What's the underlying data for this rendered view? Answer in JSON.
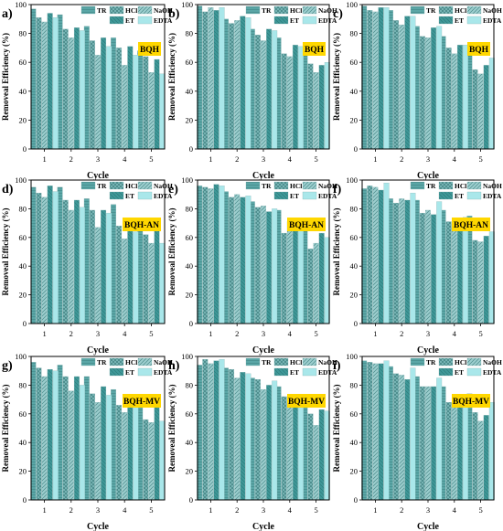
{
  "legend": {
    "labels": [
      "TR",
      "HCl",
      "NaOH",
      "ET",
      "EDTA"
    ]
  },
  "colors": {
    "TR": "#5aa6a6",
    "HCl": "#7cbaba",
    "NaOH": "#9ccece",
    "ET": "#3e9797",
    "EDTA": "#a9e7ea",
    "badge_fill": "#ffd700"
  },
  "chart_data": [
    {
      "panel": "a)",
      "type": "bar",
      "badge": "BQH",
      "categories": [
        "1",
        "2",
        "3",
        "4",
        "5"
      ],
      "xlabel": "Cycle",
      "ylabel": "Removeal Efficiency (%)",
      "ylim": [
        0,
        100
      ],
      "yticks": [
        0,
        20,
        40,
        60,
        80,
        100
      ],
      "series": [
        {
          "name": "TR",
          "values": [
            97,
            93,
            85,
            77,
            68
          ]
        },
        {
          "name": "HCl",
          "values": [
            91,
            83,
            75,
            70,
            64
          ]
        },
        {
          "name": "NaOH",
          "values": [
            88,
            77,
            65,
            58,
            53
          ]
        },
        {
          "name": "ET",
          "values": [
            94,
            84,
            77,
            71,
            62
          ]
        },
        {
          "name": "EDTA",
          "values": [
            91,
            82,
            71,
            65,
            52
          ]
        }
      ]
    },
    {
      "panel": "b)",
      "type": "bar",
      "badge": "BQH",
      "categories": [
        "1",
        "2",
        "3",
        "4",
        "5"
      ],
      "xlabel": "Cycle",
      "ylabel": "Removeal Efficiency (%)",
      "ylim": [
        0,
        100
      ],
      "yticks": [
        0,
        20,
        40,
        60,
        80,
        100
      ],
      "series": [
        {
          "name": "TR",
          "values": [
            99,
            90,
            83,
            77,
            65
          ]
        },
        {
          "name": "HCl",
          "values": [
            95,
            87,
            79,
            66,
            59
          ]
        },
        {
          "name": "NaOH",
          "values": [
            98,
            89,
            75,
            64,
            53
          ]
        },
        {
          "name": "ET",
          "values": [
            96,
            92,
            83,
            72,
            58
          ]
        },
        {
          "name": "EDTA",
          "values": [
            98,
            91,
            82,
            71,
            60
          ]
        }
      ]
    },
    {
      "panel": "c)",
      "type": "bar",
      "badge": "BQH",
      "categories": [
        "1",
        "2",
        "3",
        "4",
        "5"
      ],
      "xlabel": "Cycle",
      "ylabel": "Removeal Efficiency (%)",
      "ylim": [
        0,
        100
      ],
      "yticks": [
        0,
        20,
        40,
        60,
        80,
        100
      ],
      "series": [
        {
          "name": "TR",
          "values": [
            99,
            96,
            85,
            78,
            68
          ]
        },
        {
          "name": "HCl",
          "values": [
            96,
            89,
            78,
            70,
            55
          ]
        },
        {
          "name": "NaOH",
          "values": [
            95,
            86,
            77,
            66,
            52
          ]
        },
        {
          "name": "ET",
          "values": [
            98,
            92,
            84,
            72,
            58
          ]
        },
        {
          "name": "EDTA",
          "values": [
            98,
            92,
            85,
            72,
            63
          ]
        }
      ]
    },
    {
      "panel": "d)",
      "type": "bar",
      "badge": "BQH-AN",
      "categories": [
        "1",
        "2",
        "3",
        "4",
        "5"
      ],
      "xlabel": "Cycle",
      "ylabel": "Removeal Efficiency (%)",
      "ylim": [
        0,
        100
      ],
      "yticks": [
        0,
        20,
        40,
        60,
        80,
        100
      ],
      "series": [
        {
          "name": "TR",
          "values": [
            95,
            95,
            87,
            83,
            73
          ]
        },
        {
          "name": "HCl",
          "values": [
            91,
            86,
            79,
            68,
            62
          ]
        },
        {
          "name": "NaOH",
          "values": [
            88,
            79,
            67,
            59,
            56
          ]
        },
        {
          "name": "ET",
          "values": [
            96,
            86,
            79,
            67,
            65
          ]
        },
        {
          "name": "EDTA",
          "values": [
            92,
            81,
            77,
            64,
            56
          ]
        }
      ]
    },
    {
      "panel": "e)",
      "type": "bar",
      "badge": "BQH-AN",
      "categories": [
        "1",
        "2",
        "3",
        "4",
        "5"
      ],
      "xlabel": "Cycle",
      "ylabel": "Removeal Efficiency (%)",
      "ylim": [
        0,
        100
      ],
      "yticks": [
        0,
        20,
        40,
        60,
        80,
        100
      ],
      "series": [
        {
          "name": "TR",
          "values": [
            96,
            92,
            85,
            79,
            70
          ]
        },
        {
          "name": "HCl",
          "values": [
            95,
            88,
            81,
            63,
            52
          ]
        },
        {
          "name": "NaOH",
          "values": [
            94,
            90,
            82,
            71,
            56
          ]
        },
        {
          "name": "ET",
          "values": [
            97,
            88,
            78,
            70,
            63
          ]
        },
        {
          "name": "EDTA",
          "values": [
            96,
            89,
            80,
            71,
            60
          ]
        }
      ]
    },
    {
      "panel": "f)",
      "type": "bar",
      "badge": "BQH-AN",
      "categories": [
        "1",
        "2",
        "3",
        "4",
        "5"
      ],
      "xlabel": "Cycle",
      "ylabel": "Removeal Efficiency (%)",
      "ylim": [
        0,
        100
      ],
      "yticks": [
        0,
        20,
        40,
        60,
        80,
        100
      ],
      "series": [
        {
          "name": "TR",
          "values": [
            94,
            87,
            86,
            79,
            75
          ]
        },
        {
          "name": "HCl",
          "values": [
            96,
            84,
            77,
            71,
            58
          ]
        },
        {
          "name": "NaOH",
          "values": [
            95,
            87,
            79,
            68,
            57
          ]
        },
        {
          "name": "ET",
          "values": [
            93,
            86,
            76,
            68,
            61
          ]
        },
        {
          "name": "EDTA",
          "values": [
            98,
            91,
            85,
            74,
            64
          ]
        }
      ]
    },
    {
      "panel": "g)",
      "type": "bar",
      "badge": "BQH-MV",
      "categories": [
        "1",
        "2",
        "3",
        "4",
        "5"
      ],
      "xlabel": "Cycle",
      "ylabel": "Removeal Efficiency (%)",
      "ylim": [
        0,
        100
      ],
      "yticks": [
        0,
        20,
        40,
        60,
        80,
        100
      ],
      "series": [
        {
          "name": "TR",
          "values": [
            96,
            94,
            86,
            77,
            67
          ]
        },
        {
          "name": "HCl",
          "values": [
            92,
            86,
            74,
            66,
            56
          ]
        },
        {
          "name": "NaOH",
          "values": [
            86,
            76,
            68,
            61,
            54
          ]
        },
        {
          "name": "ET",
          "values": [
            91,
            86,
            79,
            72,
            67
          ]
        },
        {
          "name": "EDTA",
          "values": [
            90,
            80,
            73,
            65,
            55
          ]
        }
      ]
    },
    {
      "panel": "h)",
      "type": "bar",
      "badge": "BQH-MV",
      "categories": [
        "1",
        "2",
        "3",
        "4",
        "5"
      ],
      "xlabel": "Cycle",
      "ylabel": "Removeal Efficiency (%)",
      "ylim": [
        0,
        100
      ],
      "yticks": [
        0,
        20,
        40,
        60,
        80,
        100
      ],
      "series": [
        {
          "name": "TR",
          "values": [
            94,
            92,
            85,
            79,
            70
          ]
        },
        {
          "name": "HCl",
          "values": [
            98,
            91,
            84,
            72,
            60
          ]
        },
        {
          "name": "NaOH",
          "values": [
            95,
            85,
            77,
            67,
            52
          ]
        },
        {
          "name": "ET",
          "values": [
            97,
            89,
            80,
            71,
            63
          ]
        },
        {
          "name": "EDTA",
          "values": [
            98,
            88,
            83,
            69,
            62
          ]
        }
      ]
    },
    {
      "panel": "i)",
      "type": "bar",
      "badge": "BQH-MV",
      "categories": [
        "1",
        "2",
        "3",
        "4",
        "5"
      ],
      "xlabel": "Cycle",
      "ylabel": "Removeal Efficiency (%)",
      "ylim": [
        0,
        100
      ],
      "yticks": [
        0,
        20,
        40,
        60,
        80,
        100
      ],
      "series": [
        {
          "name": "TR",
          "values": [
            97,
            93,
            86,
            79,
            74
          ]
        },
        {
          "name": "HCl",
          "values": [
            96,
            88,
            79,
            68,
            61
          ]
        },
        {
          "name": "NaOH",
          "values": [
            95,
            87,
            79,
            68,
            55
          ]
        },
        {
          "name": "ET",
          "values": [
            95,
            84,
            79,
            68,
            59
          ]
        },
        {
          "name": "EDTA",
          "values": [
            97,
            92,
            85,
            72,
            68
          ]
        }
      ]
    }
  ]
}
